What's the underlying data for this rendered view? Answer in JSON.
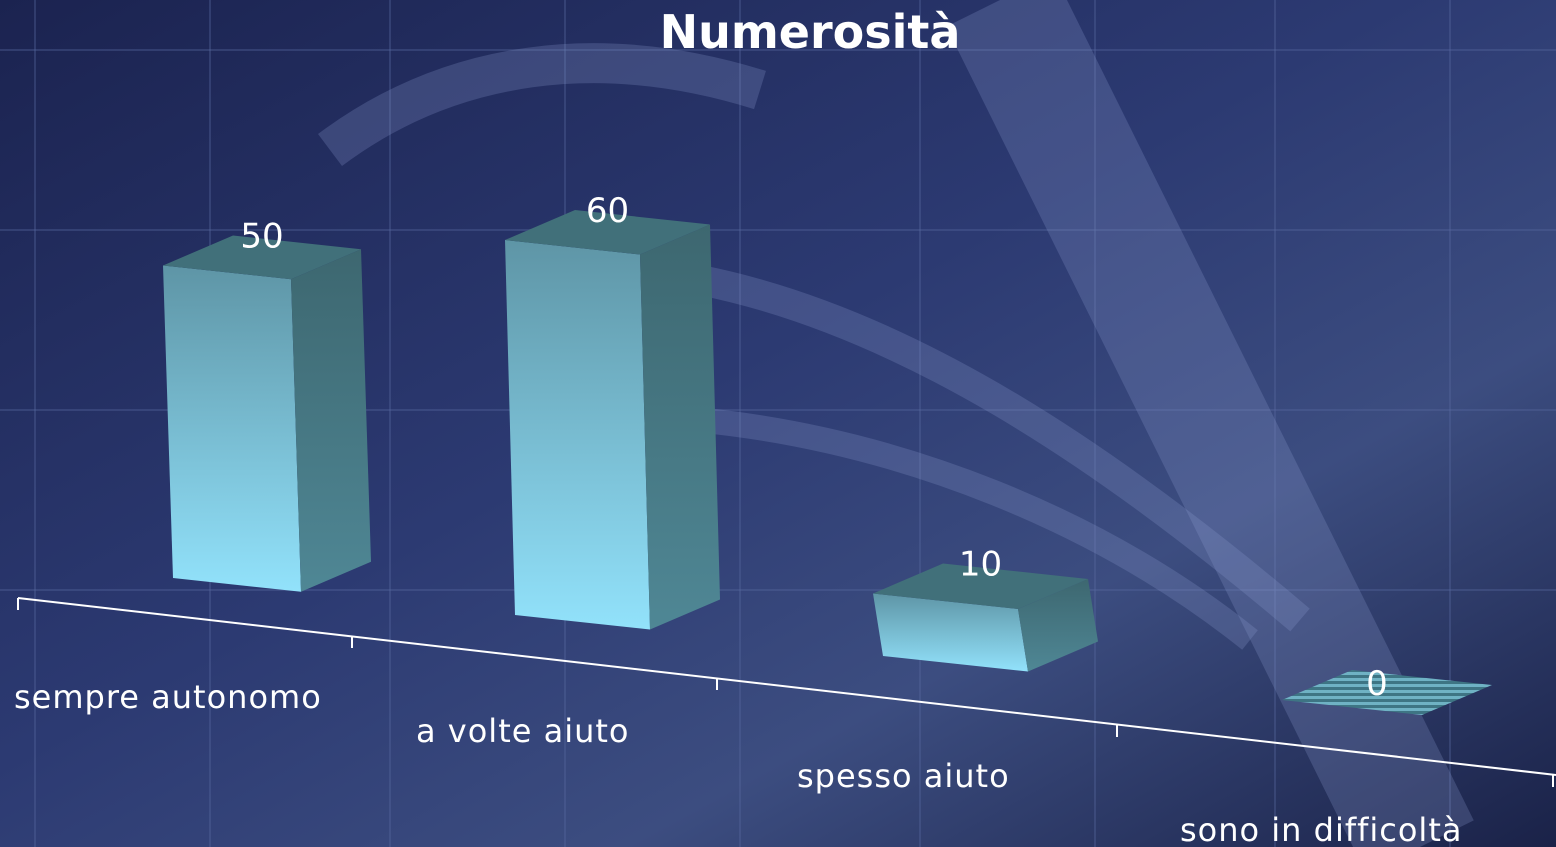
{
  "chart_data": {
    "type": "bar3d",
    "title": "Numerosità",
    "categories": [
      "sempre autonomo",
      "a volte aiuto",
      "spesso aiuto",
      "sono in difficoltà"
    ],
    "values": [
      50,
      60,
      10,
      0
    ],
    "color": "#8fe0f8"
  }
}
